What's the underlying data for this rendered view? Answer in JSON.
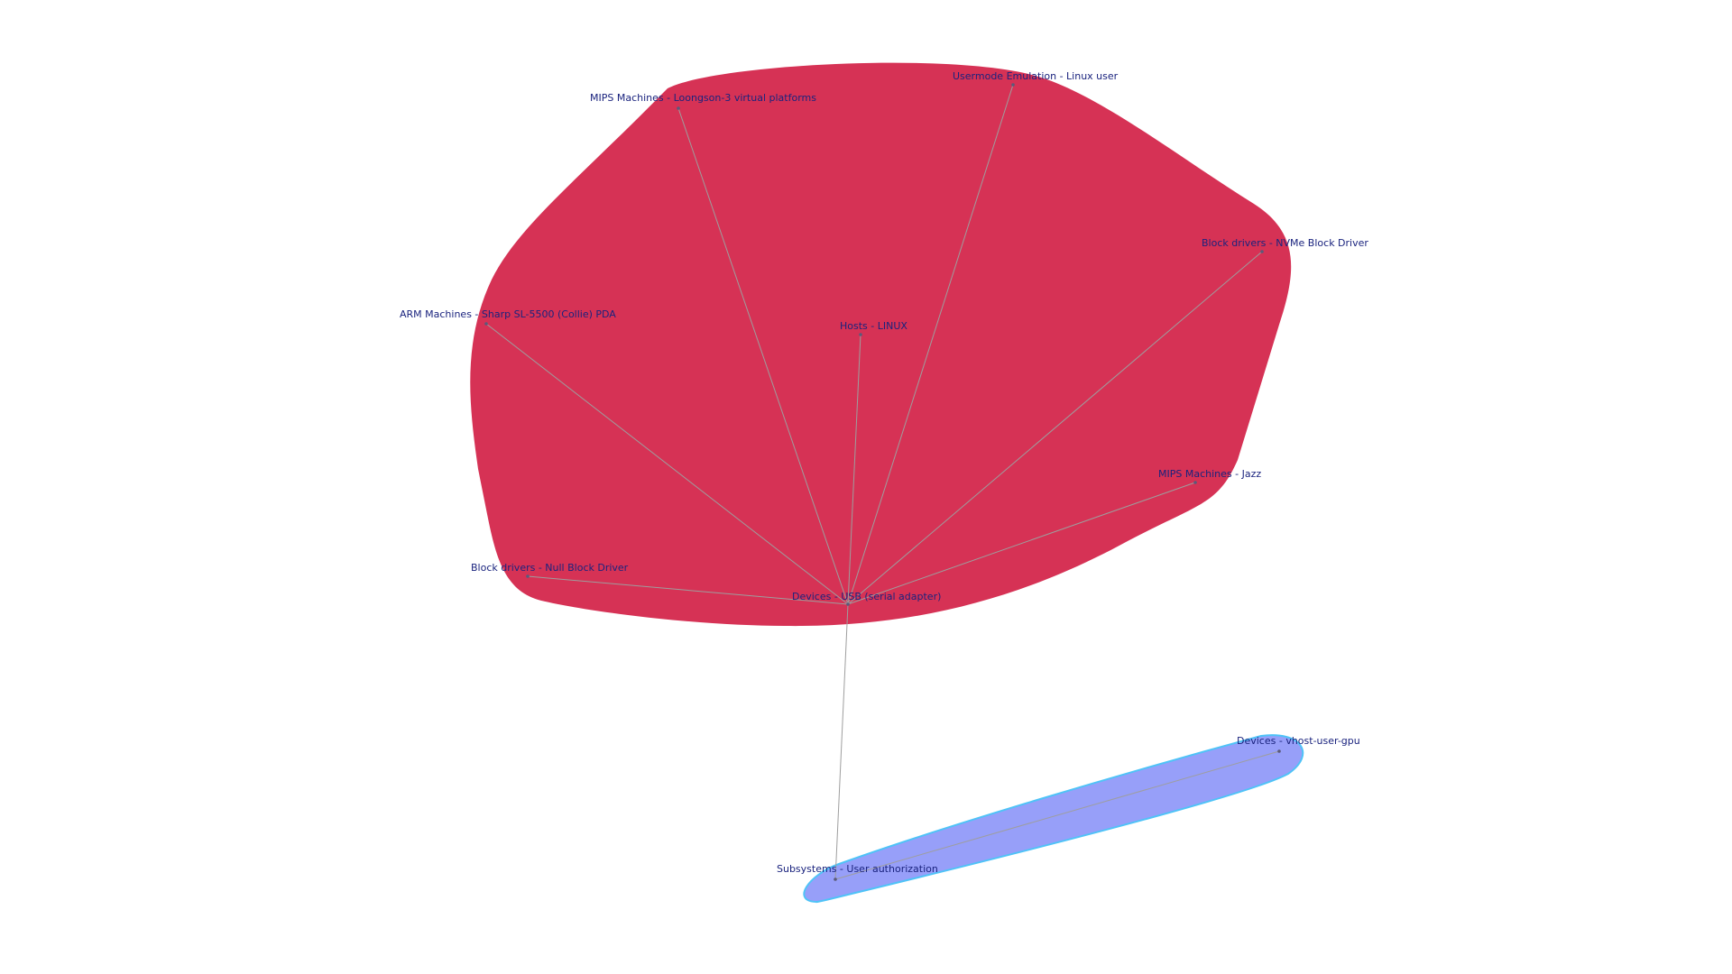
{
  "diagram": {
    "nodes": [
      {
        "id": "usb",
        "label": "Devices - USB (serial adapter)",
        "group": "red"
      },
      {
        "id": "loongson",
        "label": "MIPS Machines - Loongson-3 virtual platforms",
        "group": "red"
      },
      {
        "id": "usermode",
        "label": "Usermode Emulation - Linux user",
        "group": "red"
      },
      {
        "id": "nvme",
        "label": "Block drivers - NVMe Block Driver",
        "group": "red"
      },
      {
        "id": "collie",
        "label": "ARM Machines - Sharp SL-5500 (Collie) PDA",
        "group": "red"
      },
      {
        "id": "linux",
        "label": "Hosts - LINUX",
        "group": "red"
      },
      {
        "id": "jazz",
        "label": "MIPS Machines - Jazz",
        "group": "red"
      },
      {
        "id": "nullblk",
        "label": "Block drivers - Null Block Driver",
        "group": "red"
      },
      {
        "id": "vhostgpu",
        "label": "Devices - vhost-user-gpu",
        "group": "blue"
      },
      {
        "id": "userauth",
        "label": "Subsystems - User authorization",
        "group": "blue"
      }
    ],
    "edges": [
      [
        "usb",
        "loongson"
      ],
      [
        "usb",
        "usermode"
      ],
      [
        "usb",
        "nvme"
      ],
      [
        "usb",
        "collie"
      ],
      [
        "usb",
        "linux"
      ],
      [
        "usb",
        "jazz"
      ],
      [
        "usb",
        "nullblk"
      ],
      [
        "usb",
        "userauth"
      ],
      [
        "userauth",
        "vhostgpu"
      ]
    ],
    "groups": {
      "red": {
        "fill": "#d63255"
      },
      "blue": {
        "fill": "#979ff9",
        "stroke": "#4fc3f7"
      }
    }
  }
}
